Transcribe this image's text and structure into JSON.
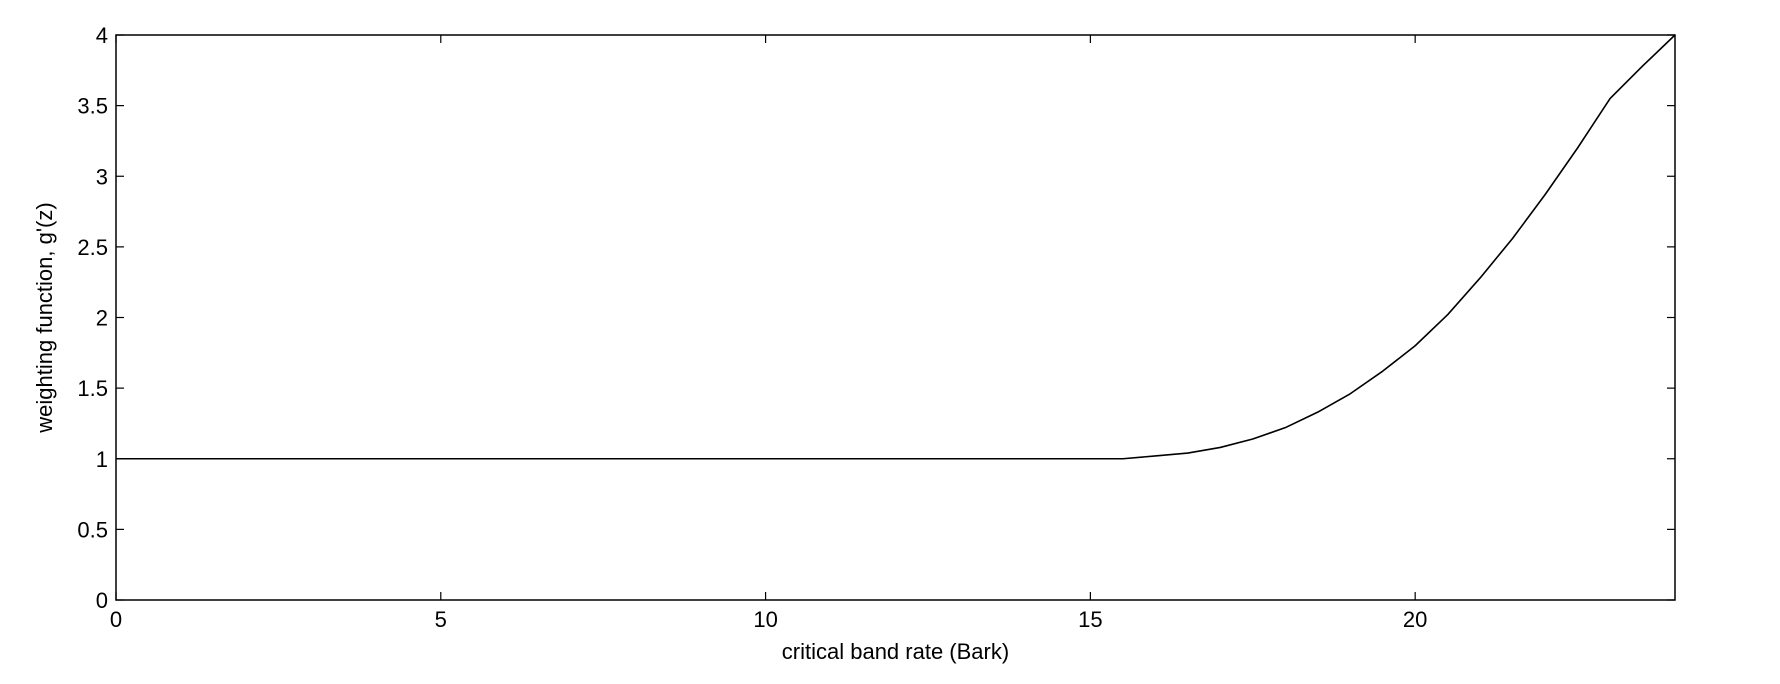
{
  "chart_data": {
    "type": "line",
    "title": "",
    "xlabel": "critical band rate (Bark)",
    "ylabel": "weighting function, g'(z)",
    "xlim": [
      0,
      24
    ],
    "ylim": [
      0,
      4
    ],
    "x_ticks": [
      0,
      5,
      10,
      15,
      20
    ],
    "x_tick_labels": [
      "0",
      "5",
      "10",
      "15",
      "20"
    ],
    "y_ticks": [
      0,
      0.5,
      1,
      1.5,
      2,
      2.5,
      3,
      3.5,
      4
    ],
    "y_tick_labels": [
      "0",
      "0.5",
      "1",
      "1.5",
      "2",
      "2.5",
      "3",
      "3.5",
      "4"
    ],
    "grid": false,
    "line_color": "#000000",
    "series": [
      {
        "x": [
          0,
          5,
          10,
          15,
          15.5,
          16,
          16.5,
          17,
          17.5,
          18,
          18.5,
          19,
          19.5,
          20,
          20.5,
          21,
          21.5,
          22,
          22.5,
          23,
          23.5,
          24
        ],
        "values": [
          1,
          1,
          1,
          1,
          1.0,
          1.02,
          1.04,
          1.08,
          1.14,
          1.22,
          1.33,
          1.46,
          1.62,
          1.8,
          2.02,
          2.28,
          2.56,
          2.87,
          3.2,
          3.55,
          3.78,
          4.0
        ]
      }
    ]
  }
}
